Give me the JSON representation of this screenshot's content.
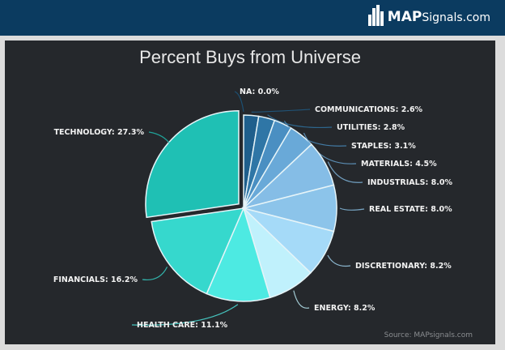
{
  "header": {
    "logo_bold": "MAP",
    "logo_rest": "Signals.com",
    "brand_color": "#0b3b60"
  },
  "chart_data": {
    "type": "pie",
    "title": "Percent Buys from Universe",
    "source": "Source: MAPsignals.com",
    "slices": [
      {
        "label": "NA: 0.0%",
        "name": "NA",
        "value": 0.0,
        "color": "#1a5a86"
      },
      {
        "label": "COMMUNICATIONS: 2.6%",
        "name": "COMMUNICATIONS",
        "value": 2.6,
        "color": "#1f5f8c"
      },
      {
        "label": "UTILITIES: 2.8%",
        "name": "UTILITIES",
        "value": 2.8,
        "color": "#2f76a6"
      },
      {
        "label": "STAPLES: 3.1%",
        "name": "STAPLES",
        "value": 3.1,
        "color": "#4a8fc2"
      },
      {
        "label": "MATERIALS: 4.5%",
        "name": "MATERIALS",
        "value": 4.5,
        "color": "#69a9d8"
      },
      {
        "label": "INDUSTRIALS: 8.0%",
        "name": "INDUSTRIALS",
        "value": 8.0,
        "color": "#85bde6"
      },
      {
        "label": "REAL ESTATE: 8.0%",
        "name": "REAL ESTATE",
        "value": 8.0,
        "color": "#8cc4ea"
      },
      {
        "label": "DISCRETIONARY: 8.2%",
        "name": "DISCRETIONARY",
        "value": 8.2,
        "color": "#a5daf8"
      },
      {
        "label": "ENERGY: 8.2%",
        "name": "ENERGY",
        "value": 8.2,
        "color": "#c0f1fc"
      },
      {
        "label": "HEALTH CARE: 11.1%",
        "name": "HEALTH CARE",
        "value": 11.1,
        "color": "#4deae2"
      },
      {
        "label": "FINANCIALS: 16.2%",
        "name": "FINANCIALS",
        "value": 16.2,
        "color": "#36d8cd"
      },
      {
        "label": "TECHNOLOGY: 27.3%",
        "name": "TECHNOLOGY",
        "value": 27.3,
        "color": "#1fc0b4",
        "exploded": true
      }
    ]
  }
}
